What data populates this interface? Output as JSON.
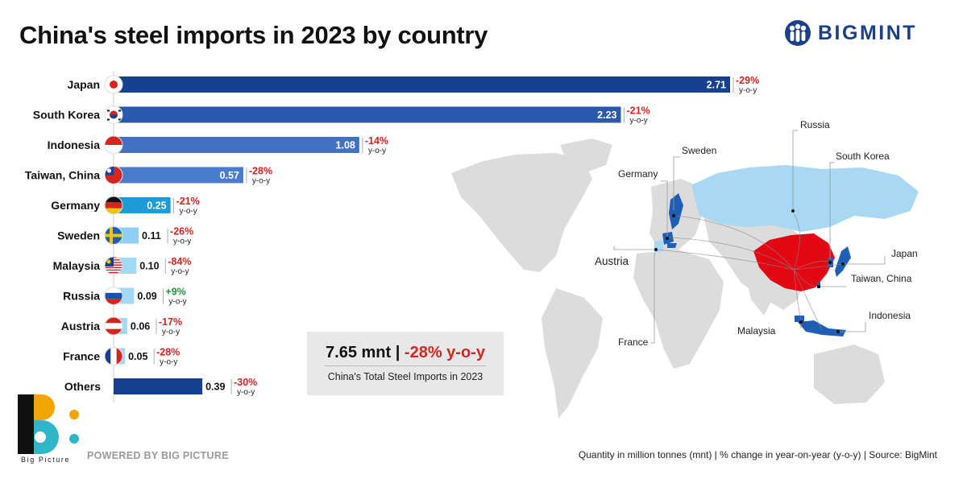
{
  "title": "China's steel imports in 2023 by country",
  "brand": {
    "name": "BIGMINT",
    "logo_icon": "bigmint-people-icon",
    "color": "#1c3f8c"
  },
  "chart_data": {
    "type": "bar",
    "orientation": "horizontal",
    "unit": "mnt",
    "xlim": [
      0,
      2.71
    ],
    "categories": [
      "Japan",
      "South Korea",
      "Indonesia",
      "Taiwan, China",
      "Germany",
      "Sweden",
      "Malaysia",
      "Russia",
      "Austria",
      "France",
      "Others"
    ],
    "values": [
      2.71,
      2.23,
      1.08,
      0.57,
      0.25,
      0.11,
      0.1,
      0.09,
      0.06,
      0.05,
      0.39
    ],
    "value_labels": [
      "2.71",
      "2.23",
      "1.08",
      "0.57",
      "0.25",
      "0.11",
      "0.10",
      "0.09",
      "0.06",
      "0.05",
      "0.39"
    ],
    "yoy_change": [
      "-29%",
      "-21%",
      "-14%",
      "-28%",
      "-21%",
      "-26%",
      "-84%",
      "+9%",
      "-17%",
      "-28%",
      "-30%"
    ],
    "yoy_label": "y-o-y",
    "bar_colors": [
      "#163f8e",
      "#2a58ad",
      "#4470c2",
      "#4a7bcc",
      "#1e9ad9",
      "#8fd0f2",
      "#a3d9f5",
      "#a3d9f5",
      "#a3d9f5",
      "#a3d9f5",
      "#163f8e"
    ],
    "flags": [
      "japan-flag-icon",
      "south-korea-flag-icon",
      "indonesia-flag-icon",
      "taiwan-flag-icon",
      "germany-flag-icon",
      "sweden-flag-icon",
      "malaysia-flag-icon",
      "russia-flag-icon",
      "austria-flag-icon",
      "france-flag-icon",
      null
    ],
    "colors": {
      "negative": "#d6241f",
      "positive": "#1e9a3c"
    }
  },
  "total": {
    "value": "7.65 mnt",
    "separator": "|",
    "change": "-28% y-o-y",
    "caption": "China's Total Steel Imports in 2023"
  },
  "map": {
    "labels": [
      "Russia",
      "Sweden",
      "Germany",
      "South Korea",
      "Austria",
      "Japan",
      "Taiwan, China",
      "Indonesia",
      "Malaysia",
      "France"
    ],
    "colors": {
      "china": "#e30613",
      "highlight": "#a8d8f4",
      "dark": "#1f5eb5",
      "land": "#dcdcdc"
    }
  },
  "footer": {
    "logo_text": "Big Picture",
    "powered": "POWERED BY BIG PICTURE",
    "source": "Quantity in million tonnes (mnt) | % change in year-on-year (y-o-y) | Source: BigMint"
  }
}
